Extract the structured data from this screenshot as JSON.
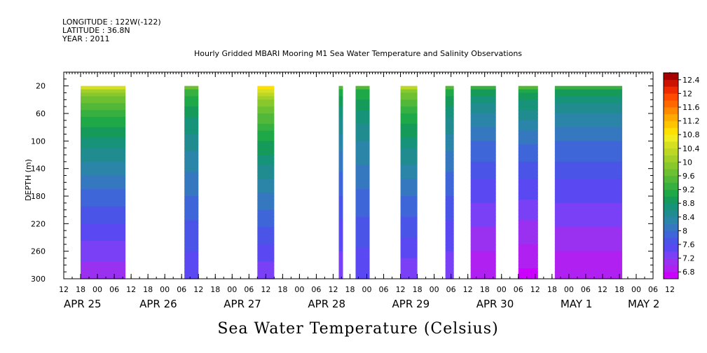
{
  "header": {
    "longitude": "LONGITUDE : 122W(-122)",
    "latitude": "LATITUDE : 36.8N",
    "year": "YEAR : 2011",
    "title": "Hourly Gridded MBARI Mooring M1 Sea Water Temperature and Salinity Observations"
  },
  "chart_data": {
    "type": "heatmap",
    "title": "Hourly Gridded MBARI Mooring M1 Sea Water Temperature and Salinity Observations",
    "xlabel": "Sea Water Temperature (Celsius)",
    "ylabel": "DEPTH (m)",
    "ylim": [
      300,
      0
    ],
    "yticks": [
      20,
      60,
      100,
      140,
      180,
      220,
      260,
      300
    ],
    "xlim_hours_from_apr24_12": [
      0,
      210
    ],
    "hour_tick_labels": [
      "12",
      "18",
      "00",
      "06",
      "12",
      "18",
      "00",
      "06",
      "12",
      "18",
      "00",
      "06",
      "12",
      "18",
      "00",
      "06",
      "12",
      "18",
      "00",
      "06",
      "12",
      "18",
      "00",
      "06",
      "12",
      "18",
      "00",
      "06",
      "12",
      "18",
      "00",
      "06",
      "12",
      "18",
      "00",
      "06",
      "12"
    ],
    "date_labels": [
      {
        "label": "APR 25",
        "hour": 0
      },
      {
        "label": "APR 26",
        "hour": 27
      },
      {
        "label": "APR 27",
        "hour": 57
      },
      {
        "label": "APR 28",
        "hour": 87
      },
      {
        "label": "APR 29",
        "hour": 117
      },
      {
        "label": "APR 30",
        "hour": 147
      },
      {
        "label": "MAY  1",
        "hour": 177
      },
      {
        "label": "MAY  2",
        "hour": 201
      }
    ],
    "colorbar": {
      "levels": [
        6.8,
        7,
        7.2,
        7.4,
        7.6,
        7.8,
        8,
        8.2,
        8.4,
        8.6,
        8.8,
        9,
        9.2,
        9.4,
        9.6,
        9.8,
        10,
        10.2,
        10.4,
        10.6,
        10.8,
        11,
        11.2,
        11.4,
        11.6,
        11.8,
        12,
        12.2,
        12.4,
        12.6
      ],
      "labels": [
        "6.8",
        "7.2",
        "7.6",
        "8",
        "8.4",
        "8.8",
        "9.2",
        "9.6",
        "10",
        "10.4",
        "10.8",
        "11.2",
        "11.6",
        "12",
        "12.4"
      ],
      "colors": [
        "#cc00ff",
        "#b020f0",
        "#9a30f0",
        "#7a40f5",
        "#5a48f2",
        "#4a55e8",
        "#3f66d8",
        "#3578c0",
        "#2a85a8",
        "#208c90",
        "#17937a",
        "#159a5a",
        "#1fa848",
        "#36b040",
        "#52b83a",
        "#6cc032",
        "#88c82c",
        "#a2d028",
        "#bcd824",
        "#d6e022",
        "#f0ec20",
        "#ffe000",
        "#ffc400",
        "#ffaa00",
        "#ff8a00",
        "#ff6800",
        "#ff4a00",
        "#ee2a00",
        "#cc1200",
        "#a60000"
      ]
    },
    "segments": [
      {
        "start_hour": 6,
        "end_hour": 22,
        "surface_temp": 10.6,
        "bottom_temp": 7.2
      },
      {
        "start_hour": 43,
        "end_hour": 48,
        "surface_temp": 9.8,
        "bottom_temp": 7.6
      },
      {
        "start_hour": 69,
        "end_hour": 75,
        "surface_temp": 11.0,
        "bottom_temp": 7.4
      },
      {
        "start_hour": 98,
        "end_hour": 99.5,
        "surface_temp": 9.6,
        "bottom_temp": 7.4
      },
      {
        "start_hour": 104,
        "end_hour": 109,
        "surface_temp": 9.6,
        "bottom_temp": 7.6
      },
      {
        "start_hour": 120,
        "end_hour": 126,
        "surface_temp": 10.4,
        "bottom_temp": 7.4
      },
      {
        "start_hour": 136,
        "end_hour": 139,
        "surface_temp": 9.6,
        "bottom_temp": 7.4
      },
      {
        "start_hour": 145,
        "end_hour": 154,
        "surface_temp": 9.4,
        "bottom_temp": 7.0
      },
      {
        "start_hour": 162,
        "end_hour": 169,
        "surface_temp": 9.6,
        "bottom_temp": 6.9
      },
      {
        "start_hour": 175,
        "end_hour": 199,
        "surface_temp": 9.4,
        "bottom_temp": 7.0
      }
    ]
  }
}
